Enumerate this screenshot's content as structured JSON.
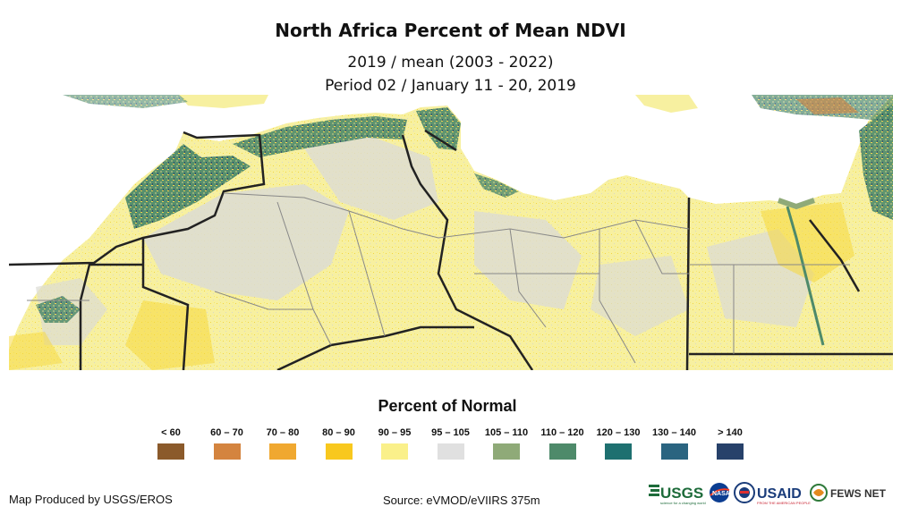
{
  "title": "North Africa Percent of Mean NDVI",
  "subtitle_line1": "2019 / mean (2003 - 2022)",
  "subtitle_line2": "Period 02 / January 11 - 20, 2019",
  "legend": {
    "title": "Percent of Normal",
    "items": [
      {
        "label": "< 60",
        "color": "#8b5a2b"
      },
      {
        "label": "60 – 70",
        "color": "#d4843f"
      },
      {
        "label": "70 – 80",
        "color": "#f0a830"
      },
      {
        "label": "80 – 90",
        "color": "#f8c81e"
      },
      {
        "label": "90 – 95",
        "color": "#faf08a"
      },
      {
        "label": "95 – 105",
        "color": "#e0e0e0"
      },
      {
        "label": "105 – 110",
        "color": "#8faa78"
      },
      {
        "label": "110 – 120",
        "color": "#4e8a6a"
      },
      {
        "label": "120 – 130",
        "color": "#1e7070"
      },
      {
        "label": "130 – 140",
        "color": "#2a6480"
      },
      {
        "label": "> 140",
        "color": "#27416a"
      }
    ]
  },
  "credits": {
    "producer": "Map Produced by USGS/EROS",
    "source": "Source: eVMOD/eVIIRS 375m"
  },
  "logos": {
    "usgs": "USGS",
    "usgs_tagline": "science for a changing world",
    "nasa": "NASA",
    "usaid": "USAID",
    "usaid_tagline": "FROM THE AMERICAN PEOPLE",
    "fews": "FEWS NET"
  }
}
